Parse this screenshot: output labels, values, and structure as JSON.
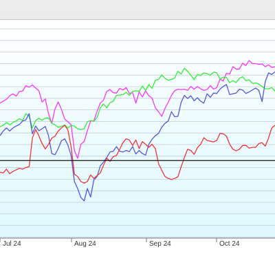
{
  "chart_data": {
    "type": "line",
    "x_ticks": [
      "Jul 24",
      "Aug 24",
      "Sep 24",
      "Oct 24"
    ],
    "baseline": 0,
    "ylim": [
      -20,
      35
    ],
    "grid": true,
    "series": [
      {
        "color": "#ff33ff",
        "values": [
          14.8,
          15.3,
          15.8,
          16.7,
          17.2,
          16.6,
          17.8,
          17.9,
          19.3,
          18.9,
          19.5,
          18.7,
          18.0,
          15.1,
          15.9,
          12.0,
          9.6,
          13.3,
          15.1,
          13.2,
          10.7,
          10.0,
          9.2,
          2.6,
          0.6,
          4.2,
          4.9,
          7.7,
          10.2,
          10.2,
          12.7,
          14.8,
          15.6,
          17.8,
          18.3,
          17.5,
          17.4,
          18.6,
          18.2,
          18.8,
          17.3,
          17.5,
          14.8,
          17.7,
          16.4,
          18.0,
          16.7,
          16.1,
          13.6,
          12.6,
          11.4,
          13.5,
          15.0,
          16.8,
          18.0,
          18.4,
          18.3,
          18.4,
          18.1,
          19.1,
          18.4,
          19.1,
          18.5,
          18.1,
          18.3,
          19.3,
          18.4,
          18.8,
          21.0,
          20.5,
          22.5,
          22.3,
          24.2,
          23.6,
          23.6,
          25.1,
          24.5,
          25.8,
          25.0,
          25.0,
          24.8,
          24.9,
          24.2,
          24.7,
          24.0,
          24.2
        ]
      },
      {
        "color": "#33ee33",
        "values": [
          8.7,
          9.1,
          9.8,
          9.2,
          9.8,
          10.2,
          10.8,
          10.3,
          12.1,
          11.4,
          8.4,
          10.3,
          10.9,
          10.4,
          10.9,
          11.0,
          9.6,
          9.2,
          8.6,
          8.8,
          9.2,
          8.4,
          9.1,
          8.9,
          8.2,
          8.0,
          8.2,
          10.0,
          10.3,
          10.1,
          11.1,
          13.6,
          14.6,
          13.6,
          14.9,
          15.3,
          16.8,
          16.9,
          17.0,
          17.6,
          16.8,
          17.8,
          18.0,
          17.8,
          19.2,
          18.1,
          19.6,
          18.6,
          20.7,
          20.9,
          22.1,
          21.2,
          20.7,
          20.9,
          21.3,
          23.0,
          22.3,
          23.8,
          23.0,
          22.0,
          20.8,
          22.2,
          21.9,
          22.6,
          22.4,
          22.0,
          22.8,
          22.6,
          21.0,
          21.5,
          21.4,
          20.1,
          20.6,
          20.1,
          21.2,
          21.6,
          20.6,
          20.8,
          19.9,
          20.0,
          19.7,
          19.1,
          18.5,
          18.5,
          18.8,
          17.9
        ]
      },
      {
        "color": "#5555dd",
        "values": [
          6.4,
          7.6,
          8.4,
          7.6,
          8.4,
          8.9,
          9.3,
          10.2,
          10.5,
          12.1,
          6.9,
          8.9,
          7.7,
          8.2,
          8.8,
          6.4,
          1.8,
          1.5,
          3.1,
          5.1,
          5.6,
          4.0,
          1.2,
          -5.4,
          -7.2,
          -9.5,
          -10.4,
          -7.2,
          -9.4,
          -5.0,
          -4.1,
          -1.4,
          -0.4,
          0.8,
          2.2,
          2.4,
          3.6,
          2.4,
          2.2,
          2.6,
          2.3,
          3.6,
          1.7,
          2.6,
          1.8,
          1.4,
          4.2,
          5.5,
          6.4,
          7.0,
          8.6,
          9.6,
          10.2,
          12.6,
          11.3,
          11.4,
          15.0,
          16.8,
          16.0,
          16.7,
          15.4,
          16.2,
          15.3,
          14.8,
          17.2,
          16.3,
          17.4,
          17.3,
          18.4,
          19.1,
          19.6,
          17.0,
          17.2,
          17.4,
          18.4,
          18.2,
          17.3,
          17.7,
          18.2,
          18.7,
          18.1,
          15.2,
          20.4,
          22.6,
          22.2,
          22.9
        ]
      },
      {
        "color": "#ee3333",
        "values": [
          -3.0,
          -3.2,
          -2.2,
          -3.4,
          -2.8,
          -2.4,
          -2.0,
          -2.2,
          -1.8,
          -1.6,
          5.8,
          8.0,
          6.4,
          4.4,
          3.0,
          4.2,
          5.8,
          6.3,
          7.6,
          8.4,
          9.1,
          7.9,
          3.5,
          -3.5,
          -4.1,
          -5.4,
          -5.8,
          -5.4,
          -3.7,
          -4.6,
          -3.9,
          -3.2,
          -1.2,
          0.6,
          -0.2,
          1.0,
          1.3,
          2.9,
          4.6,
          5.6,
          5.3,
          3.9,
          5.3,
          3.1,
          4.9,
          4.2,
          3.4,
          4.2,
          3.1,
          -0.8,
          -2.5,
          -4.1,
          -4.6,
          -4.9,
          -4.6,
          -4.2,
          -1.6,
          0.8,
          2.9,
          2.6,
          1.6,
          3.3,
          4.2,
          5.9,
          5.2,
          5.0,
          4.8,
          5.2,
          7.0,
          6.9,
          6.3,
          4.2,
          2.9,
          2.5,
          2.9,
          3.9,
          3.9,
          3.2,
          3.4,
          3.4,
          4.4,
          4.6,
          3.7,
          5.8,
          8.4,
          9.1
        ]
      }
    ]
  }
}
